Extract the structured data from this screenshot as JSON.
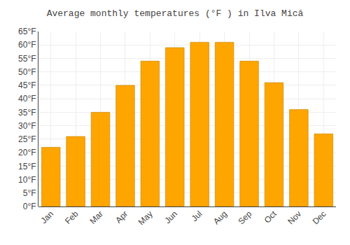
{
  "chart_data": {
    "type": "bar",
    "title": "Average monthly temperatures (°F ) in Ilva Mică",
    "categories": [
      "Jan",
      "Feb",
      "Mar",
      "Apr",
      "May",
      "Jun",
      "Jul",
      "Aug",
      "Sep",
      "Oct",
      "Nov",
      "Dec"
    ],
    "values": [
      22,
      26,
      35,
      45,
      54,
      59,
      61,
      61,
      54,
      46,
      36,
      27
    ],
    "color": "#FFA500",
    "ylim": [
      0,
      65
    ],
    "yticks": [
      {
        "value": 0,
        "label": "0°F"
      },
      {
        "value": 5,
        "label": "5°F"
      },
      {
        "value": 10,
        "label": "10°F"
      },
      {
        "value": 15,
        "label": "15°F"
      },
      {
        "value": 20,
        "label": "20°F"
      },
      {
        "value": 25,
        "label": "25°F"
      },
      {
        "value": 30,
        "label": "30°F"
      },
      {
        "value": 35,
        "label": "35°F"
      },
      {
        "value": 40,
        "label": "40°F"
      },
      {
        "value": 45,
        "label": "45°F"
      },
      {
        "value": 50,
        "label": "50°F"
      },
      {
        "value": 55,
        "label": "55°F"
      },
      {
        "value": 60,
        "label": "60°F"
      },
      {
        "value": 65,
        "label": "65°F"
      }
    ],
    "grid": true
  }
}
